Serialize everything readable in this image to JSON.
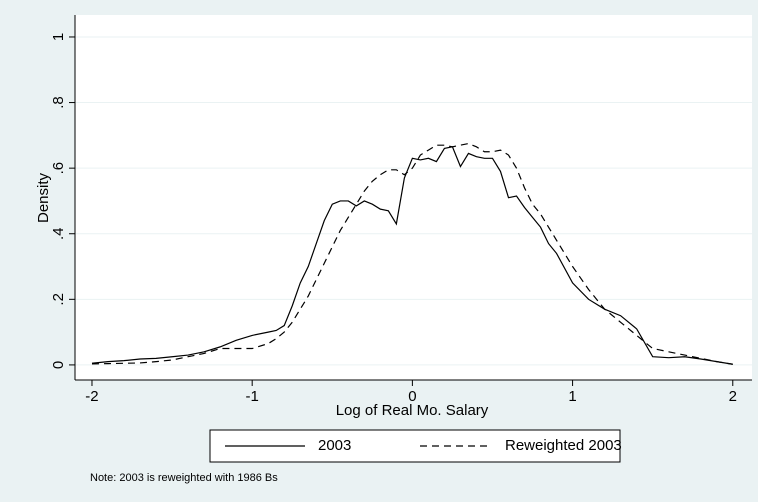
{
  "chart_data": {
    "type": "line",
    "x_label": "Log of Real Mo. Salary",
    "y_label": "Density",
    "note": "Note: 2003 is reweighted with 1986 Bs",
    "x": [
      -2,
      -1.9,
      -1.8,
      -1.7,
      -1.6,
      -1.5,
      -1.4,
      -1.3,
      -1.2,
      -1.1,
      -1,
      -0.9,
      -0.85,
      -0.8,
      -0.75,
      -0.7,
      -0.65,
      -0.6,
      -0.55,
      -0.5,
      -0.45,
      -0.4,
      -0.35,
      -0.3,
      -0.25,
      -0.2,
      -0.15,
      -0.1,
      -0.05,
      0,
      0.05,
      0.1,
      0.15,
      0.2,
      0.25,
      0.3,
      0.35,
      0.4,
      0.45,
      0.5,
      0.55,
      0.6,
      0.65,
      0.7,
      0.75,
      0.8,
      0.85,
      0.9,
      1,
      1.1,
      1.2,
      1.3,
      1.4,
      1.5,
      1.6,
      1.7,
      1.8,
      1.9,
      2
    ],
    "series": [
      {
        "name": "2003",
        "color": "#000000",
        "dash": "solid",
        "values": [
          0.005,
          0.01,
          0.013,
          0.018,
          0.02,
          0.025,
          0.03,
          0.04,
          0.055,
          0.075,
          0.09,
          0.1,
          0.105,
          0.12,
          0.18,
          0.25,
          0.3,
          0.37,
          0.44,
          0.49,
          0.5,
          0.5,
          0.485,
          0.5,
          0.49,
          0.475,
          0.47,
          0.43,
          0.57,
          0.63,
          0.625,
          0.63,
          0.62,
          0.66,
          0.665,
          0.605,
          0.645,
          0.635,
          0.63,
          0.63,
          0.59,
          0.51,
          0.515,
          0.48,
          0.45,
          0.42,
          0.37,
          0.34,
          0.25,
          0.2,
          0.17,
          0.15,
          0.11,
          0.025,
          0.022,
          0.025,
          0.018,
          0.01,
          0.002
        ]
      },
      {
        "name": "Reweighted 2003",
        "color": "#000000",
        "dash": "dashed",
        "values": [
          0.003,
          0.004,
          0.005,
          0.006,
          0.01,
          0.015,
          0.025,
          0.035,
          0.05,
          0.05,
          0.05,
          0.065,
          0.08,
          0.1,
          0.13,
          0.17,
          0.21,
          0.26,
          0.31,
          0.36,
          0.41,
          0.45,
          0.49,
          0.53,
          0.56,
          0.58,
          0.595,
          0.595,
          0.58,
          0.6,
          0.64,
          0.655,
          0.67,
          0.67,
          0.665,
          0.67,
          0.675,
          0.665,
          0.65,
          0.65,
          0.655,
          0.64,
          0.6,
          0.54,
          0.49,
          0.46,
          0.42,
          0.38,
          0.3,
          0.23,
          0.17,
          0.13,
          0.09,
          0.05,
          0.04,
          0.03,
          0.02,
          0.01,
          0.002
        ]
      }
    ],
    "xlim": [
      -2.106,
      2.12
    ],
    "ylim": [
      -0.046,
      1.067
    ],
    "xticks": [
      -2,
      -1,
      0,
      1,
      2
    ],
    "yticks": [
      0,
      {
        "value": 0.2,
        "label": ".2"
      },
      {
        "value": 0.4,
        "label": ".4"
      },
      {
        "value": 0.6,
        "label": ".6"
      },
      {
        "value": 0.8,
        "label": ".8"
      },
      1
    ],
    "grid": true
  }
}
